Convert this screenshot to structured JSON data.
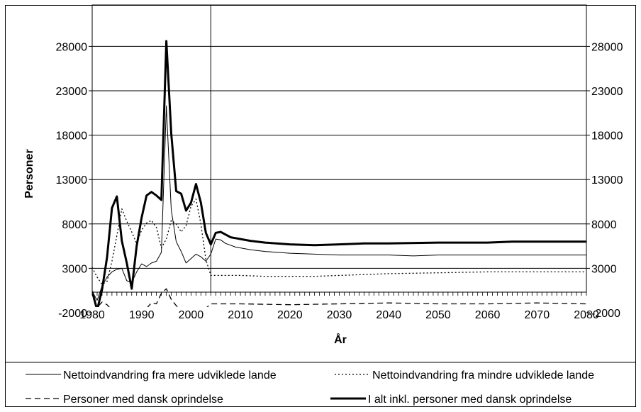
{
  "chart_data": {
    "type": "line",
    "title": "",
    "xlabel": "År",
    "ylabel": "Personer",
    "xlim": [
      1980,
      2080
    ],
    "ylim": [
      -2000,
      30000
    ],
    "x_ticks": [
      "1980",
      "1990",
      "2000",
      "2010",
      "2020",
      "2030",
      "2040",
      "2050",
      "2060",
      "2070",
      "2080"
    ],
    "y_ticks": [
      "-2000",
      "3000",
      "8000",
      "13000",
      "18000",
      "23000",
      "28000"
    ],
    "secondary_y_axis": true,
    "vertical_marker_year": 2004,
    "grid": "horizontal",
    "legend_position": "bottom",
    "series": [
      {
        "name": "Nettoindvandring fra mere udviklede lande",
        "style": "thin-solid",
        "color": "#000000",
        "points": [
          [
            1980,
            400
          ],
          [
            1981,
            -600
          ],
          [
            1982,
            1000
          ],
          [
            1983,
            2000
          ],
          [
            1984,
            2600
          ],
          [
            1985,
            2900
          ],
          [
            1986,
            3000
          ],
          [
            1987,
            1600
          ],
          [
            1988,
            1400
          ],
          [
            1989,
            2600
          ],
          [
            1990,
            3500
          ],
          [
            1991,
            3200
          ],
          [
            1992,
            3600
          ],
          [
            1993,
            3800
          ],
          [
            1994,
            4800
          ],
          [
            1995,
            21300
          ],
          [
            1996,
            9600
          ],
          [
            1997,
            6000
          ],
          [
            1998,
            4900
          ],
          [
            1999,
            3600
          ],
          [
            2000,
            4100
          ],
          [
            2001,
            4600
          ],
          [
            2002,
            4300
          ],
          [
            2003,
            3800
          ],
          [
            2004,
            4600
          ],
          [
            2005,
            6300
          ],
          [
            2006,
            6200
          ],
          [
            2007,
            5800
          ],
          [
            2008,
            5600
          ],
          [
            2009,
            5400
          ],
          [
            2010,
            5300
          ],
          [
            2012,
            5100
          ],
          [
            2015,
            4900
          ],
          [
            2020,
            4700
          ],
          [
            2025,
            4600
          ],
          [
            2030,
            4500
          ],
          [
            2035,
            4500
          ],
          [
            2040,
            4500
          ],
          [
            2045,
            4400
          ],
          [
            2050,
            4500
          ],
          [
            2060,
            4500
          ],
          [
            2070,
            4500
          ],
          [
            2080,
            4500
          ]
        ]
      },
      {
        "name": "Nettoindvandring fra mindre udviklede lande",
        "style": "dotted",
        "color": "#000000",
        "points": [
          [
            1980,
            3100
          ],
          [
            1981,
            2000
          ],
          [
            1982,
            1200
          ],
          [
            1983,
            1500
          ],
          [
            1984,
            3800
          ],
          [
            1985,
            6700
          ],
          [
            1986,
            9700
          ],
          [
            1987,
            8300
          ],
          [
            1988,
            7100
          ],
          [
            1989,
            5800
          ],
          [
            1990,
            7300
          ],
          [
            1991,
            8100
          ],
          [
            1992,
            8400
          ],
          [
            1993,
            7600
          ],
          [
            1994,
            5300
          ],
          [
            1995,
            6300
          ],
          [
            1996,
            8400
          ],
          [
            1997,
            8000
          ],
          [
            1998,
            7100
          ],
          [
            1999,
            7800
          ],
          [
            2000,
            10000
          ],
          [
            2001,
            10800
          ],
          [
            2002,
            8000
          ],
          [
            2003,
            4000
          ],
          [
            2004,
            2200
          ],
          [
            2005,
            2200
          ],
          [
            2010,
            2200
          ],
          [
            2015,
            2100
          ],
          [
            2020,
            2100
          ],
          [
            2025,
            2100
          ],
          [
            2030,
            2200
          ],
          [
            2035,
            2300
          ],
          [
            2040,
            2400
          ],
          [
            2050,
            2500
          ],
          [
            2060,
            2600
          ],
          [
            2070,
            2600
          ],
          [
            2080,
            2600
          ]
        ]
      },
      {
        "name": "Personer med dansk oprindelse",
        "style": "dashed",
        "color": "#000000",
        "points": [
          [
            1980,
            -2000
          ],
          [
            1981,
            -1400
          ],
          [
            1982,
            -800
          ],
          [
            1983,
            -1100
          ],
          [
            1984,
            -1700
          ],
          [
            1985,
            -2800
          ],
          [
            1986,
            -3300
          ],
          [
            1987,
            -3500
          ],
          [
            1988,
            -3900
          ],
          [
            1989,
            -3400
          ],
          [
            1990,
            -2700
          ],
          [
            1991,
            -1500
          ],
          [
            1992,
            -900
          ],
          [
            1993,
            -1000
          ],
          [
            1994,
            200
          ],
          [
            1995,
            700
          ],
          [
            1996,
            -500
          ],
          [
            1997,
            -1200
          ],
          [
            1998,
            -1700
          ],
          [
            1999,
            -2200
          ],
          [
            2000,
            -2000
          ],
          [
            2001,
            -1700
          ],
          [
            2002,
            -1800
          ],
          [
            2003,
            -1500
          ],
          [
            2004,
            -1000
          ],
          [
            2005,
            -1000
          ],
          [
            2010,
            -1000
          ],
          [
            2020,
            -1100
          ],
          [
            2030,
            -1000
          ],
          [
            2040,
            -900
          ],
          [
            2050,
            -1000
          ],
          [
            2060,
            -1000
          ],
          [
            2070,
            -900
          ],
          [
            2080,
            -1000
          ]
        ]
      },
      {
        "name": "I alt inkl. personer med dansk oprindelse",
        "style": "thick-solid",
        "color": "#000000",
        "points": [
          [
            1980,
            400
          ],
          [
            1981,
            -1700
          ],
          [
            1982,
            600
          ],
          [
            1983,
            4200
          ],
          [
            1984,
            9800
          ],
          [
            1985,
            11100
          ],
          [
            1986,
            6100
          ],
          [
            1987,
            3600
          ],
          [
            1988,
            700
          ],
          [
            1989,
            5500
          ],
          [
            1990,
            8700
          ],
          [
            1991,
            11200
          ],
          [
            1992,
            11600
          ],
          [
            1993,
            11200
          ],
          [
            1994,
            10700
          ],
          [
            1995,
            28600
          ],
          [
            1996,
            18200
          ],
          [
            1997,
            11700
          ],
          [
            1998,
            11400
          ],
          [
            1999,
            9500
          ],
          [
            2000,
            10400
          ],
          [
            2001,
            12500
          ],
          [
            2002,
            10400
          ],
          [
            2003,
            7000
          ],
          [
            2004,
            5700
          ],
          [
            2005,
            7000
          ],
          [
            2006,
            7100
          ],
          [
            2007,
            6800
          ],
          [
            2008,
            6500
          ],
          [
            2009,
            6400
          ],
          [
            2010,
            6300
          ],
          [
            2012,
            6100
          ],
          [
            2015,
            5900
          ],
          [
            2020,
            5700
          ],
          [
            2025,
            5600
          ],
          [
            2030,
            5700
          ],
          [
            2035,
            5800
          ],
          [
            2040,
            5800
          ],
          [
            2050,
            5900
          ],
          [
            2060,
            5900
          ],
          [
            2065,
            6000
          ],
          [
            2070,
            6000
          ],
          [
            2080,
            6000
          ]
        ]
      }
    ]
  }
}
